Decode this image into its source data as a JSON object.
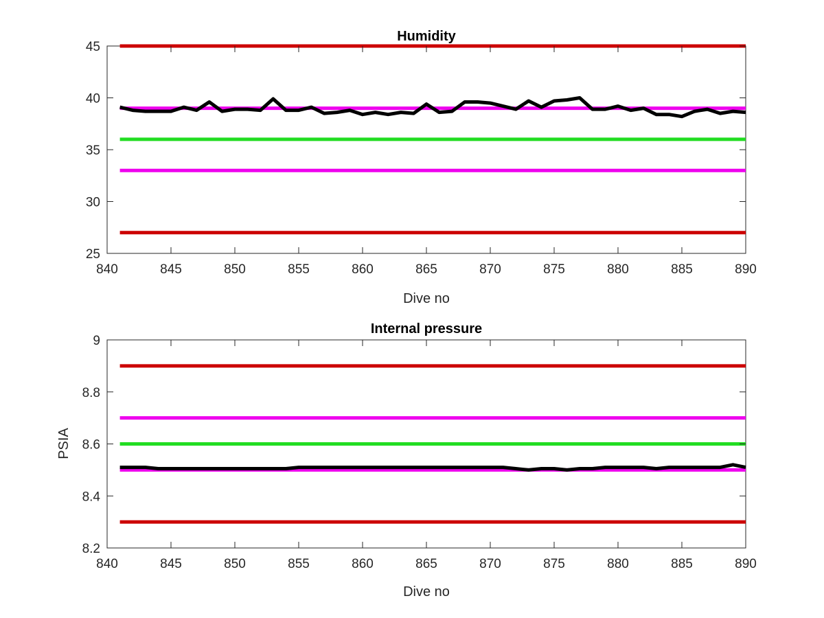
{
  "chart_data": [
    {
      "type": "line",
      "title": "Humidity",
      "xlabel": "Dive no",
      "ylabel": "",
      "xlim": [
        840,
        890
      ],
      "ylim": [
        25,
        45
      ],
      "xticks": [
        "840",
        "845",
        "850",
        "855",
        "860",
        "865",
        "870",
        "875",
        "880",
        "885",
        "890"
      ],
      "yticks": [
        "25",
        "30",
        "35",
        "40",
        "45"
      ],
      "grid": false,
      "reference_lines": [
        {
          "y": 45,
          "color": "#cc0000"
        },
        {
          "y": 39,
          "color": "#ee00ee"
        },
        {
          "y": 36,
          "color": "#22dd22"
        },
        {
          "y": 33,
          "color": "#ee00ee"
        },
        {
          "y": 27,
          "color": "#cc0000"
        }
      ],
      "series": [
        {
          "color": "#000000",
          "x": [
            841,
            842,
            843,
            844,
            845,
            846,
            847,
            848,
            849,
            850,
            851,
            852,
            853,
            854,
            855,
            856,
            857,
            858,
            859,
            860,
            861,
            862,
            863,
            864,
            865,
            866,
            867,
            868,
            869,
            870,
            871,
            872,
            873,
            874,
            875,
            876,
            877,
            878,
            879,
            880,
            881,
            882,
            883,
            884,
            885,
            886,
            887,
            888,
            889,
            890
          ],
          "y": [
            39.1,
            38.8,
            38.7,
            38.7,
            38.7,
            39.1,
            38.8,
            39.6,
            38.7,
            38.9,
            38.9,
            38.8,
            39.9,
            38.8,
            38.8,
            39.1,
            38.5,
            38.6,
            38.8,
            38.4,
            38.6,
            38.4,
            38.6,
            38.5,
            39.4,
            38.6,
            38.7,
            39.6,
            39.6,
            39.5,
            39.2,
            38.9,
            39.7,
            39.1,
            39.7,
            39.8,
            40.0,
            38.9,
            38.9,
            39.2,
            38.8,
            39.0,
            38.4,
            38.4,
            38.2,
            38.7,
            38.9,
            38.5,
            38.7,
            38.6
          ]
        }
      ]
    },
    {
      "type": "line",
      "title": "Internal pressure",
      "xlabel": "Dive no",
      "ylabel": "PSIA",
      "xlim": [
        840,
        890
      ],
      "ylim": [
        8.2,
        9
      ],
      "xticks": [
        "840",
        "845",
        "850",
        "855",
        "860",
        "865",
        "870",
        "875",
        "880",
        "885",
        "890"
      ],
      "yticks": [
        "8.2",
        "8.4",
        "8.6",
        "8.8",
        "9"
      ],
      "grid": false,
      "reference_lines": [
        {
          "y": 8.9,
          "color": "#cc0000"
        },
        {
          "y": 8.7,
          "color": "#ee00ee"
        },
        {
          "y": 8.6,
          "color": "#22dd22"
        },
        {
          "y": 8.5,
          "color": "#ee00ee"
        },
        {
          "y": 8.3,
          "color": "#cc0000"
        }
      ],
      "series": [
        {
          "color": "#000000",
          "x": [
            841,
            842,
            843,
            844,
            845,
            846,
            847,
            848,
            849,
            850,
            851,
            852,
            853,
            854,
            855,
            856,
            857,
            858,
            859,
            860,
            861,
            862,
            863,
            864,
            865,
            866,
            867,
            868,
            869,
            870,
            871,
            872,
            873,
            874,
            875,
            876,
            877,
            878,
            879,
            880,
            881,
            882,
            883,
            884,
            885,
            886,
            887,
            888,
            889,
            890
          ],
          "y": [
            8.51,
            8.51,
            8.51,
            8.505,
            8.505,
            8.505,
            8.505,
            8.505,
            8.505,
            8.505,
            8.505,
            8.505,
            8.505,
            8.505,
            8.51,
            8.51,
            8.51,
            8.51,
            8.51,
            8.51,
            8.51,
            8.51,
            8.51,
            8.51,
            8.51,
            8.51,
            8.51,
            8.51,
            8.51,
            8.51,
            8.51,
            8.505,
            8.5,
            8.505,
            8.505,
            8.5,
            8.505,
            8.505,
            8.51,
            8.51,
            8.51,
            8.51,
            8.505,
            8.51,
            8.51,
            8.51,
            8.51,
            8.51,
            8.52,
            8.51
          ]
        }
      ]
    }
  ]
}
